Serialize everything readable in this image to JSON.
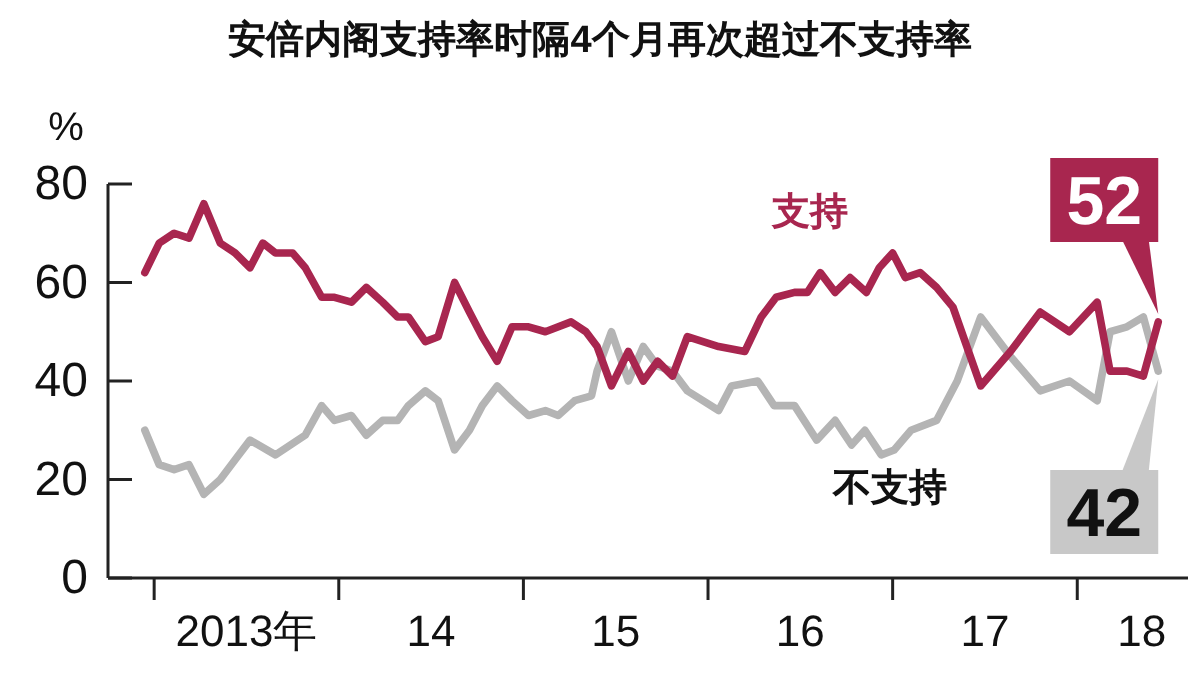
{
  "chart_data": {
    "type": "line",
    "title": "安倍内阁支持率时隔4个月再次超过不支持率",
    "ylabel": "%",
    "xlim": [
      "2012-10-01",
      "2018-08-07"
    ],
    "ylim": [
      0,
      80
    ],
    "yticks": [
      0,
      20,
      40,
      60,
      80
    ],
    "xticks": [
      {
        "value": "2013-01-01",
        "label": null
      },
      {
        "value": "2013-07-01",
        "label": "2013年"
      },
      {
        "value": "2014-01-01",
        "label": null
      },
      {
        "value": "2014-07-01",
        "label": "14"
      },
      {
        "value": "2015-01-01",
        "label": null
      },
      {
        "value": "2015-07-01",
        "label": "15"
      },
      {
        "value": "2016-01-01",
        "label": null
      },
      {
        "value": "2016-07-01",
        "label": "16"
      },
      {
        "value": "2017-01-01",
        "label": null
      },
      {
        "value": "2017-07-01",
        "label": "17"
      },
      {
        "value": "2018-01-01",
        "label": null
      },
      {
        "value": "2018-05-07",
        "label": "18"
      }
    ],
    "grid": false,
    "legend": false,
    "marker": "none",
    "line_style": "solid",
    "series": [
      {
        "name": "支持",
        "color": "#a8264f",
        "x": [
          "2012-12-13",
          "2013-01-11",
          "2013-02-10",
          "2013-03-09",
          "2013-04-08",
          "2013-05-10",
          "2013-06-09",
          "2013-07-08",
          "2013-08-03",
          "2013-08-28",
          "2013-10-01",
          "2013-10-26",
          "2013-11-28",
          "2013-12-23",
          "2014-01-26",
          "2014-02-25",
          "2014-03-27",
          "2014-04-26",
          "2014-05-17",
          "2014-06-20",
          "2014-07-15",
          "2014-08-17",
          "2014-09-16",
          "2014-10-11",
          "2014-11-10",
          "2014-12-09",
          "2015-01-11",
          "2015-02-14",
          "2015-04-04",
          "2015-05-03",
          "2015-05-25",
          "2015-06-23",
          "2015-07-26",
          "2015-08-25",
          "2015-09-23",
          "2015-10-22",
          "2015-11-21",
          "2016-01-22",
          "2016-03-13",
          "2016-04-15",
          "2016-05-14",
          "2016-06-20",
          "2016-07-15",
          "2016-08-10",
          "2016-09-09",
          "2016-10-08",
          "2016-11-10",
          "2016-12-05",
          "2017-01-01",
          "2017-01-26",
          "2017-02-25",
          "2017-03-27",
          "2017-04-29",
          "2017-06-23",
          "2017-08-21",
          "2017-10-19",
          "2017-12-16",
          "2018-02-10",
          "2018-03-05",
          "2018-04-08",
          "2018-05-10",
          "2018-06-09"
        ],
        "values": [
          62,
          68,
          70,
          69,
          76,
          68,
          66,
          63,
          68,
          66,
          66,
          63,
          57,
          57,
          56,
          59,
          56,
          53,
          53,
          48,
          49,
          60,
          54,
          49,
          44,
          51,
          51,
          50,
          52,
          50,
          47,
          39,
          46,
          40,
          44,
          41,
          49,
          47,
          46,
          53,
          57,
          58,
          58,
          62,
          58,
          61,
          58,
          63,
          66,
          61,
          62,
          59,
          55,
          39,
          46,
          54,
          50,
          56,
          42,
          42,
          41,
          52
        ]
      },
      {
        "name": "不支持",
        "color": "#b4b4b4",
        "x": [
          "2012-12-13",
          "2013-01-11",
          "2013-02-10",
          "2013-03-09",
          "2013-04-08",
          "2013-05-10",
          "2013-06-09",
          "2013-07-08",
          "2013-08-28",
          "2013-10-26",
          "2013-11-28",
          "2013-12-23",
          "2014-01-26",
          "2014-02-25",
          "2014-03-27",
          "2014-04-26",
          "2014-05-17",
          "2014-06-20",
          "2014-07-15",
          "2014-08-17",
          "2014-09-16",
          "2014-10-11",
          "2014-11-10",
          "2014-12-09",
          "2015-01-11",
          "2015-02-14",
          "2015-03-09",
          "2015-04-11",
          "2015-05-14",
          "2015-05-25",
          "2015-06-23",
          "2015-07-26",
          "2015-08-25",
          "2015-09-23",
          "2015-10-22",
          "2015-11-21",
          "2016-01-22",
          "2016-02-17",
          "2016-04-08",
          "2016-05-10",
          "2016-06-20",
          "2016-08-03",
          "2016-09-09",
          "2016-10-11",
          "2016-11-07",
          "2016-12-09",
          "2017-01-04",
          "2017-02-07",
          "2017-03-27",
          "2017-05-07",
          "2017-06-23",
          "2017-08-21",
          "2017-10-19",
          "2017-12-16",
          "2018-02-10",
          "2018-03-05",
          "2018-04-08",
          "2018-05-10",
          "2018-06-09"
        ],
        "values": [
          30,
          23,
          22,
          23,
          17,
          20,
          24,
          28,
          25,
          29,
          35,
          32,
          33,
          29,
          32,
          32,
          35,
          38,
          36,
          26,
          30,
          35,
          39,
          36,
          33,
          34,
          33,
          36,
          37,
          42,
          50,
          40,
          47,
          43,
          42,
          38,
          34,
          39,
          40,
          35,
          35,
          28,
          32,
          27,
          30,
          25,
          26,
          30,
          32,
          40,
          53,
          45,
          38,
          40,
          36,
          50,
          51,
          53,
          42
        ]
      }
    ],
    "annotations": [
      {
        "text": "52",
        "x": "2018-06-09",
        "y": 52
      },
      {
        "text": "42",
        "x": "2018-06-09",
        "y": 42
      }
    ]
  }
}
